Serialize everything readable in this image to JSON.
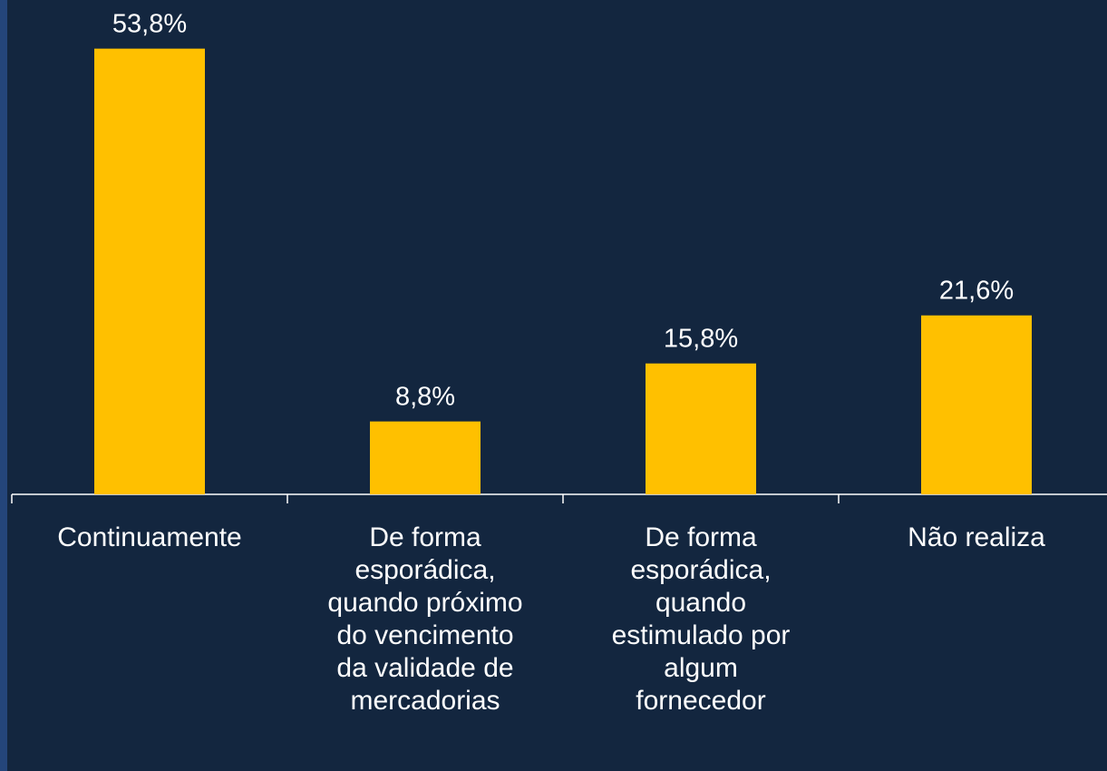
{
  "chart_data": {
    "type": "bar",
    "categories": [
      "Continuamente",
      "De forma\nesporádica,\nquando próximo\ndo vencimento\nda validade de\nmercadorias",
      "De forma\nesporádica,\nquando\nestimulado por\nalgum\nfornecedor",
      "Não realiza"
    ],
    "values": [
      53.8,
      8.8,
      15.8,
      21.6
    ],
    "value_labels": [
      "53,8%",
      "8,8%",
      "15,8%",
      "21,6%"
    ],
    "color": "#ffc000",
    "ylim": [
      0,
      60
    ]
  }
}
